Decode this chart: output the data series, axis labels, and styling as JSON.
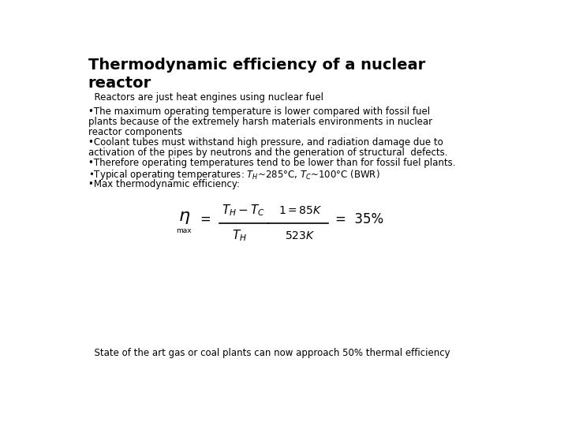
{
  "background_color": "#ffffff",
  "title_line1": "Thermodynamic efficiency of a nuclear",
  "title_line2": "reactor",
  "subtitle": "  Reactors are just heat engines using nuclear fuel",
  "bullet1_line1": "•The maximum operating temperature is lower compared with fossil fuel",
  "bullet1_line2": "plants because of the extremely harsh materials environments in nuclear",
  "bullet1_line3": "reactor components",
  "bullet2_line1": "•Coolant tubes must withstand high pressure, and radiation damage due to",
  "bullet2_line2": "activation of the pipes by neutrons and the generation of structural  defects.",
  "bullet3": "•Therefore operating temperatures tend to be lower than for fossil fuel plants.",
  "bullet4": "•Typical operating temperatures: $T_H$~285°C, $T_C$~100°C (BWR)",
  "bullet5": "•Max thermodynamic efficiency:",
  "footer": "  State of the art gas or coal plants can now approach 50% thermal efficiency",
  "title_fontsize": 14,
  "subtitle_fontsize": 8.5,
  "body_fontsize": 8.5,
  "footer_fontsize": 8.5
}
